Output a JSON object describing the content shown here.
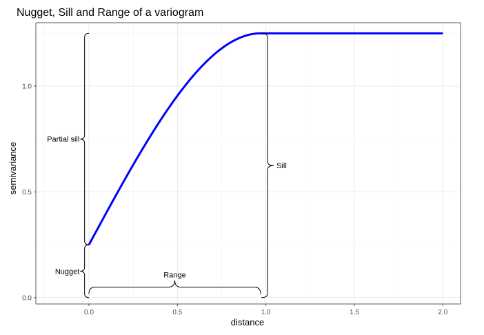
{
  "chart_data": {
    "type": "line",
    "title": "Nugget, Sill and Range of a variogram",
    "xlabel": "distance",
    "ylabel": "semivariance",
    "xlim": [
      -0.3,
      2.1
    ],
    "ylim": [
      -0.03,
      1.3
    ],
    "xticks": [
      0.0,
      0.5,
      1.0,
      1.5,
      2.0
    ],
    "xtick_labels": [
      "0.0",
      "0.5",
      "1.0",
      "1.5",
      "2.0"
    ],
    "yticks": [
      0.0,
      0.5,
      1.0
    ],
    "ytick_labels": [
      "0.0",
      "0.5",
      "1.0"
    ],
    "grid": true,
    "series": [
      {
        "model": "spherical",
        "nugget": 0.25,
        "partial_sill": 1.0,
        "range": 0.97,
        "x_max": 2.0,
        "color": "#0000ff"
      }
    ],
    "annotations": [
      {
        "label": "Nugget",
        "brace": "y",
        "at_x": -0.03,
        "from": 0.0,
        "to": 0.25
      },
      {
        "label": "Partial sill",
        "brace": "y",
        "at_x": -0.03,
        "from": 0.25,
        "to": 1.25
      },
      {
        "label": "Sill",
        "brace": "y",
        "at_x": 0.99,
        "from": 0.0,
        "to": 1.25
      },
      {
        "label": "Range",
        "brace": "x",
        "at_y": 0.04,
        "from": 0.0,
        "to": 0.97
      }
    ]
  }
}
